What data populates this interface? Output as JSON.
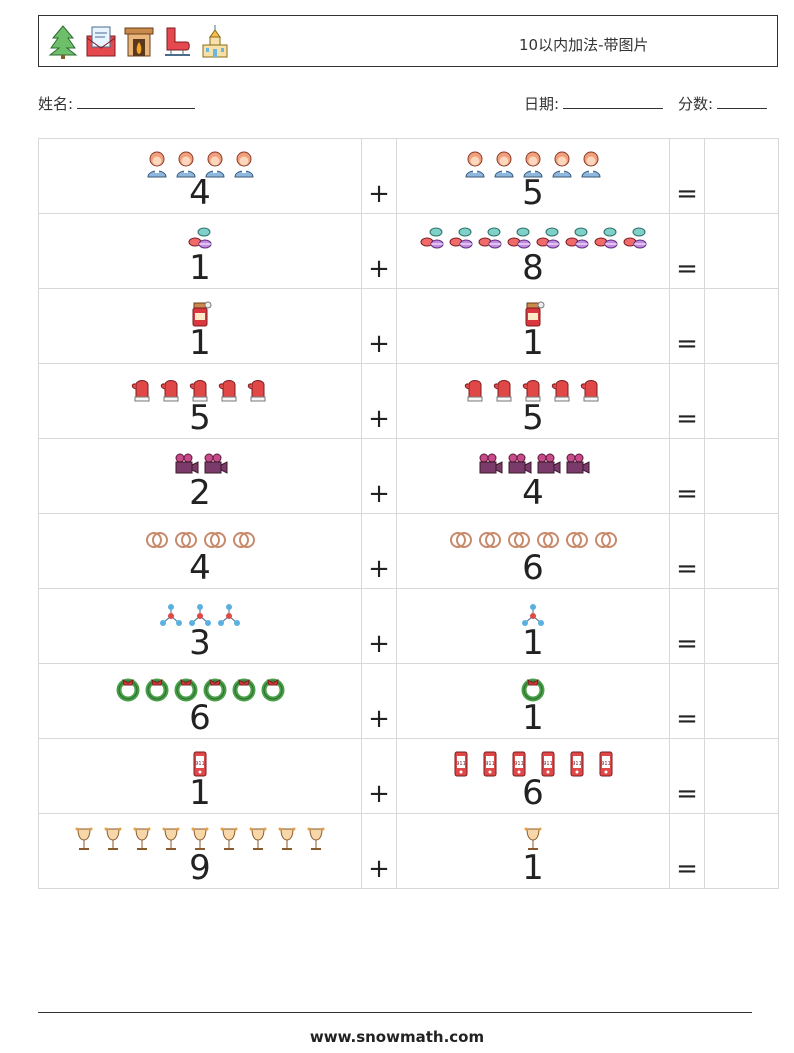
{
  "header": {
    "title": "10以内加法-带图片",
    "icons": [
      "christmas-tree-icon",
      "wish-list-letter-icon",
      "fireplace-icon",
      "ice-skate-icon",
      "church-icon"
    ]
  },
  "info": {
    "name_label": "姓名:",
    "date_label": "日期:",
    "score_label": "分数:"
  },
  "operators": {
    "plus": "+",
    "equals": "="
  },
  "problems": [
    {
      "a": "4",
      "b": "5",
      "icon": "woman-icon"
    },
    {
      "a": "1",
      "b": "8",
      "icon": "macaron-icon"
    },
    {
      "a": "1",
      "b": "1",
      "icon": "jam-jar-icon"
    },
    {
      "a": "5",
      "b": "5",
      "icon": "mitten-icon"
    },
    {
      "a": "2",
      "b": "4",
      "icon": "video-camera-icon"
    },
    {
      "a": "4",
      "b": "6",
      "icon": "rings-icon"
    },
    {
      "a": "3",
      "b": "1",
      "icon": "molecule-icon"
    },
    {
      "a": "6",
      "b": "1",
      "icon": "wreath-icon"
    },
    {
      "a": "1",
      "b": "6",
      "icon": "phone-911-icon"
    },
    {
      "a": "9",
      "b": "1",
      "icon": "wine-glass-icon"
    }
  ],
  "footer": {
    "url": "www.snowmath.com"
  }
}
